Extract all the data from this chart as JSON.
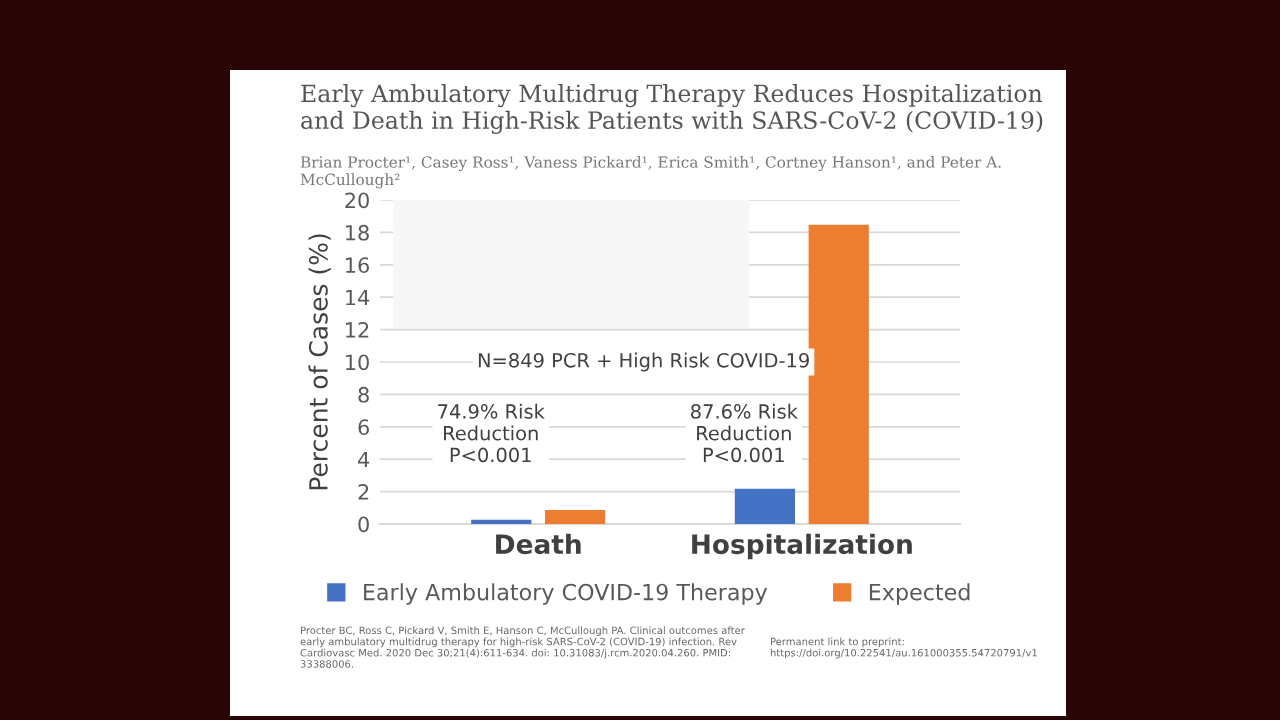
{
  "chart_data": {
    "type": "bar",
    "title": "Early Ambulatory Multidrug Therapy Reduces Hospitalization and Death in High-Risk Patients with SARS-CoV-2 (COVID-19)",
    "subtitle": "Brian Procter¹, Casey Ross¹, Vaness Pickard¹, Erica Smith¹, Cortney Hanson¹, and Peter A. McCullough²",
    "ylabel": "Percent of Cases (%)",
    "categories": [
      "Death",
      "Hospitalization"
    ],
    "series": [
      {
        "name": "Early Ambulatory COVID-19 Therapy",
        "color": "#4472c4",
        "values": [
          0.2,
          2.1
        ]
      },
      {
        "name": "Expected",
        "color": "#ed7d31",
        "values": [
          0.8,
          18.4
        ]
      }
    ],
    "ylim": [
      0,
      20
    ],
    "yticks": [
      0,
      2,
      4,
      6,
      8,
      10,
      12,
      14,
      16,
      18,
      20
    ],
    "grid": "y",
    "legend": "bottom",
    "annotations": [
      "N=849 PCR + High Risk COVID-19",
      "74.9% Risk\nReduction\nP<0.001",
      "87.6% Risk\nReduction\nP<0.001",
      "Procter BC, Ross C, Pickard V, Smith E, Hanson C, McCullough PA. Clinical outcomes after early ambulatory multidrug therapy for high-risk SARS-CoV-2 (COVID-19) infection. Rev Cardiovasc Med. 2020 Dec 30;21(4):611-634. doi: 10.31083/j.rcm.2020.04.260. PMID: 33388006.",
      "Permanent link to preprint:\nhttps://doi.org/10.22541/au.161000355.54720791/v1"
    ]
  }
}
